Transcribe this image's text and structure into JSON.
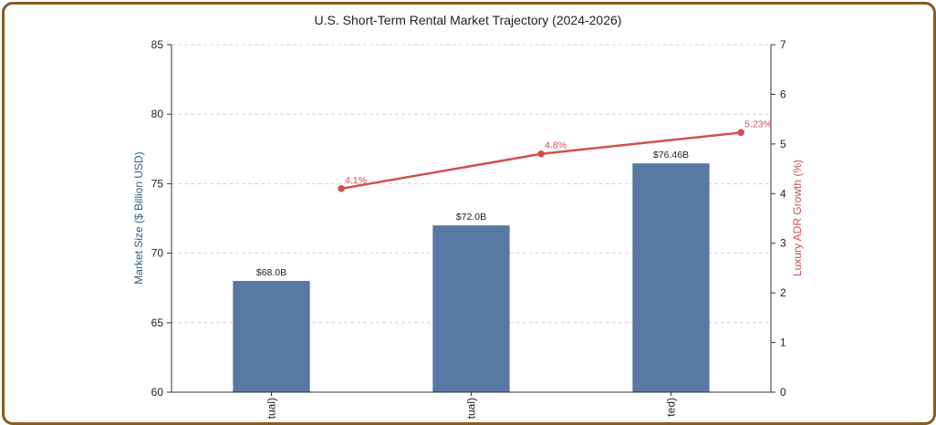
{
  "chart_data": {
    "type": "bar+line",
    "title": "U.S. Short-Term Rental Market Trajectory (2024-2026)",
    "categories": [
      "tual)",
      "tual)",
      "ted)"
    ],
    "bar_series": {
      "axis": "left",
      "color": "#5778a3",
      "values": [
        68.0,
        72.0,
        76.46
      ],
      "labels": [
        "$68.0B",
        "$72.0B",
        "$76.46B"
      ]
    },
    "line_series": {
      "axis": "right",
      "color": "#d1504d",
      "values": [
        4.1,
        4.8,
        5.23
      ],
      "labels": [
        "4.1%",
        "4.8%",
        "5.23%"
      ]
    },
    "ylabel_left": "Market Size ($ Billion USD)",
    "ylabel_right": "Luxury ADR Growth (%)",
    "ylim_left": [
      60,
      85
    ],
    "yticks_left": [
      "60",
      "65",
      "70",
      "75",
      "80",
      "85"
    ],
    "ylim_right": [
      0,
      7
    ],
    "yticks_right": [
      "0",
      "1",
      "2",
      "3",
      "4",
      "5",
      "6",
      "7"
    ],
    "grid": true,
    "axis_colors": {
      "left": "#2f5d8a",
      "right": "#d1504d"
    }
  }
}
